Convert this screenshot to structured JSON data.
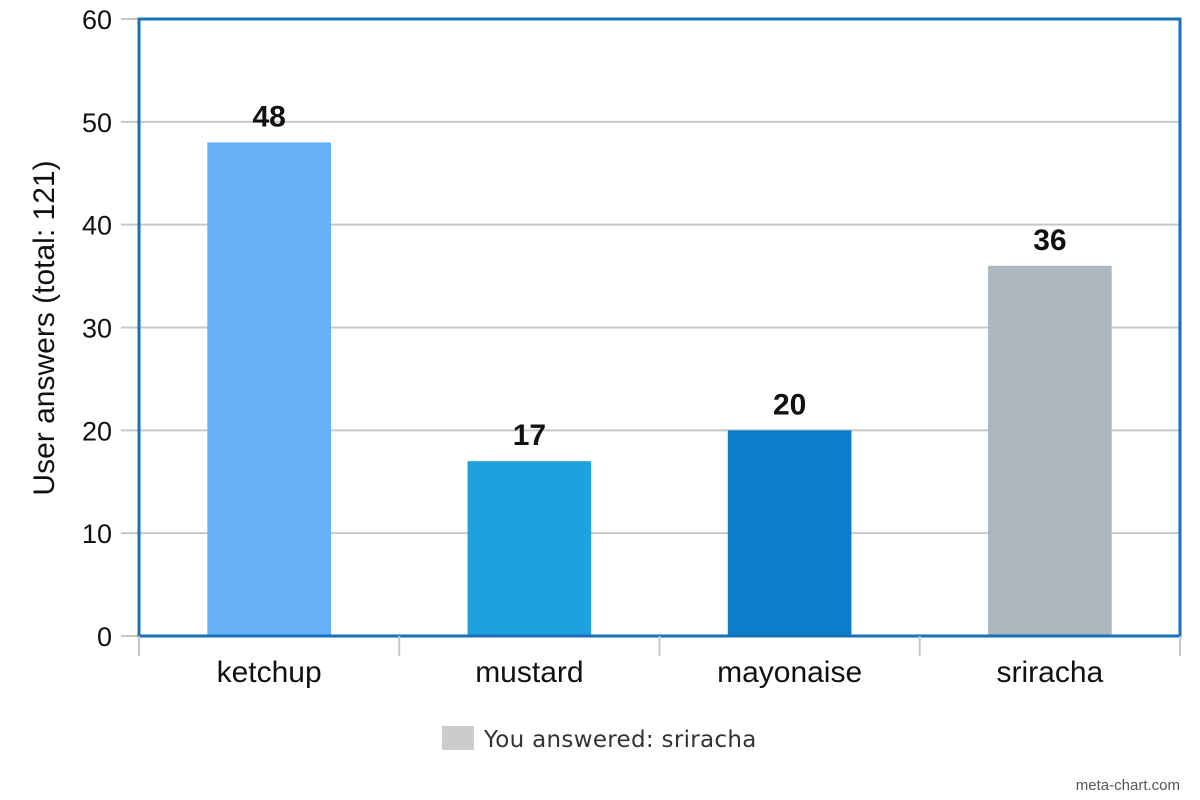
{
  "chart_data": {
    "type": "bar",
    "categories": [
      "ketchup",
      "mustard",
      "mayonaise",
      "sriracha"
    ],
    "values": [
      48,
      17,
      20,
      36
    ],
    "colors": [
      "#66b0f7",
      "#1fa1de",
      "#0b7dca",
      "#adb7bf"
    ],
    "title": "",
    "xlabel": "",
    "ylabel": "User answers (total: 121)",
    "ylim": [
      0,
      60
    ],
    "yticks": [
      0,
      10,
      20,
      30,
      40,
      50,
      60
    ],
    "grid": true,
    "legend": {
      "position": "bottom-center",
      "entries": [
        {
          "label": "You answered: sriracha",
          "color": "#cccccc"
        }
      ]
    }
  },
  "frame_color": "#1a6fb9",
  "grid_color": "#c8c8c8",
  "credit": "meta-chart.com"
}
